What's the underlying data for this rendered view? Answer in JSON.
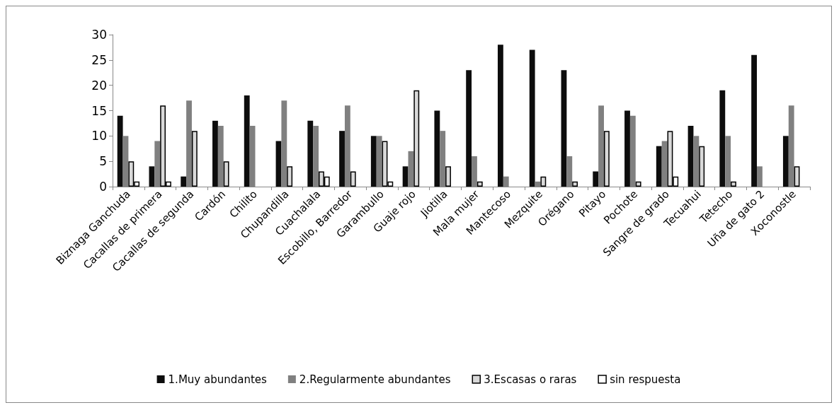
{
  "chart_data": {
    "type": "bar",
    "categories": [
      "Biznaga Ganchuda",
      "Cacallas de primera",
      "Cacallas de segunda",
      "Cardón",
      "Chilito",
      "Chupandilla",
      "Cuachalala",
      "Escobillo, Barredor",
      "Garambullo",
      "Guaje rojo",
      "Jiotilla",
      "Mala mujer",
      "Mantecoso",
      "Mezquite",
      "Orégano",
      "Pitayo",
      "Pochote",
      "Sangre de grado",
      "Tecuahui",
      "Tetecho",
      "Uña de gato 2",
      "Xoconostle"
    ],
    "series": [
      {
        "name": "1.Muy abundantes",
        "color": "#0d0d0d",
        "values": [
          14,
          4,
          2,
          13,
          18,
          9,
          13,
          11,
          10,
          4,
          15,
          23,
          28,
          27,
          23,
          3,
          15,
          8,
          12,
          19,
          26,
          10
        ]
      },
      {
        "name": "2.Regularmente abundantes",
        "color": "#808080",
        "values": [
          10,
          9,
          17,
          12,
          12,
          17,
          12,
          16,
          10,
          7,
          11,
          6,
          2,
          1,
          6,
          16,
          14,
          9,
          10,
          10,
          4,
          16
        ]
      },
      {
        "name": "3.Escasas o raras",
        "color": "#d9d9d9",
        "values": [
          5,
          16,
          11,
          5,
          0,
          4,
          3,
          3,
          9,
          19,
          4,
          1,
          0,
          2,
          1,
          11,
          1,
          11,
          8,
          1,
          0,
          4
        ]
      },
      {
        "name": "sin respuesta",
        "color": "#ffffff",
        "values": [
          1,
          1,
          0,
          0,
          0,
          0,
          2,
          0,
          1,
          0,
          0,
          0,
          0,
          0,
          0,
          0,
          0,
          2,
          0,
          0,
          0,
          0
        ]
      }
    ],
    "ylim": [
      0,
      30
    ],
    "yticks": [
      0,
      5,
      10,
      15,
      20,
      25,
      30
    ],
    "grid": false,
    "legend": "bottom"
  }
}
